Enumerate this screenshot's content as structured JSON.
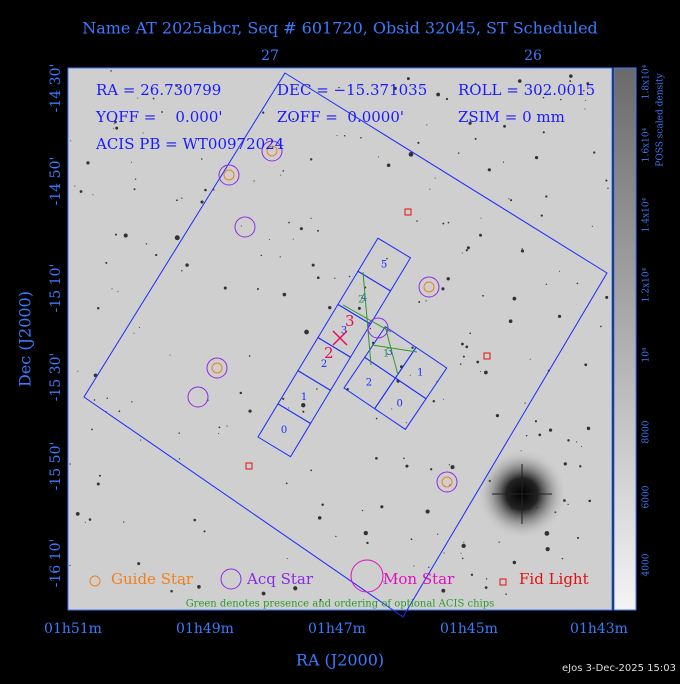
{
  "title": "Name AT 2025abcr, Seq # 601720, Obsid 32045, ST Scheduled",
  "top_ticks": [
    "27",
    "26"
  ],
  "left_ticks": [
    "-14 30'",
    "-14 50'",
    "-15 10'",
    "-15 30'",
    "-15 50'",
    "-16 10'"
  ],
  "bottom_ticks": [
    "01h51m",
    "01h49m",
    "01h47m",
    "01h45m",
    "01h43m"
  ],
  "x_label": "RA (J2000)",
  "y_label": "Dec (J2000)",
  "info": [
    "RA = 26.730799",
    "DEC = −15.371035",
    "ROLL = 302.0015",
    "YOFF =    0.000'",
    "ZOFF =  0.0000'",
    "ZSIM = 0 mm",
    "ACIS PB = WT00972024"
  ],
  "legend": [
    "Guide Star",
    "Acq Star",
    "Mon Star",
    "Fid Light"
  ],
  "note": "Green denotes presence and ordering of optional ACIS chips",
  "colorbar": {
    "title": "POSS scaled density",
    "labels": [
      "1.8x10⁴",
      "1.6x10⁴",
      "1.4x10⁴",
      "1.2x10⁴",
      "10⁴",
      "8000",
      "6000",
      "4000"
    ]
  },
  "chips_s": [
    "0",
    "1",
    "2",
    "3",
    "4",
    "5"
  ],
  "chips_i": [
    "2",
    "3",
    "0",
    "1"
  ],
  "optional": [
    "2",
    "1"
  ],
  "markers": [
    "3",
    "2"
  ],
  "footer": "eJos  3-Dec-2025 15:03"
}
